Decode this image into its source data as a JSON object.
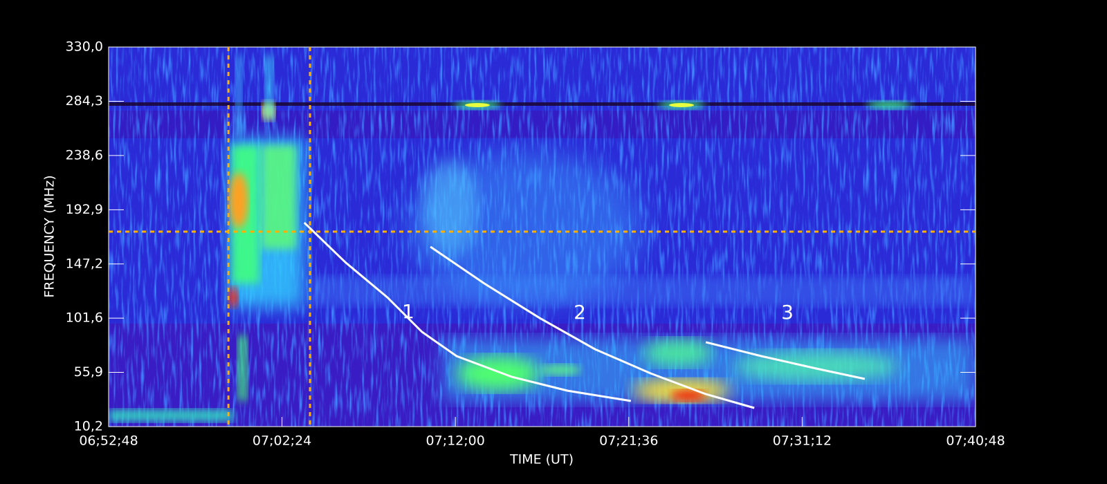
{
  "chart_data": {
    "type": "spectrogram",
    "xlabel": "TIME (UT)",
    "ylabel": "FREQUENCY (MHz)",
    "xlim": [
      "06:52:48",
      "07:40:48"
    ],
    "xticks": [
      {
        "value": "06:52:48",
        "label": "06;52;48"
      },
      {
        "value": "07:02:24",
        "label": "07;02;24"
      },
      {
        "value": "07:12:00",
        "label": "07;12;00"
      },
      {
        "value": "07:21:36",
        "label": "07;21;36"
      },
      {
        "value": "07:31:12",
        "label": "07;31;12"
      },
      {
        "value": "07:40:48",
        "label": "07;40;48"
      }
    ],
    "ylim": [
      10.2,
      330.0
    ],
    "yticks": [
      {
        "value": 10.2,
        "label": "10,2"
      },
      {
        "value": 55.9,
        "label": "55,9"
      },
      {
        "value": 101.6,
        "label": "101,6"
      },
      {
        "value": 147.2,
        "label": "147,2"
      },
      {
        "value": 192.9,
        "label": "192,9"
      },
      {
        "value": 238.6,
        "label": "238,6"
      },
      {
        "value": 284.3,
        "label": "284,3"
      },
      {
        "value": 330.0,
        "label": "330,0"
      }
    ],
    "guides": {
      "color": "#ffb000",
      "x": [
        "06:59:26",
        "07:03:57"
      ],
      "y": [
        174.5
      ]
    },
    "series": [
      {
        "name": "1",
        "color": "#ffffff",
        "x": [
          "07:03:38",
          "07:05:56",
          "07:08:14",
          "07:10:09",
          "07:12:04",
          "07:15:08",
          "07:18:12",
          "07:21:43"
        ],
        "values": [
          182.0,
          148.3,
          119.1,
          90.0,
          69.6,
          52.1,
          40.5,
          31.8
        ]
      },
      {
        "name": "2",
        "color": "#ffffff",
        "x": [
          "07:10:37",
          "07:13:36",
          "07:16:40",
          "07:19:44",
          "07:22:48",
          "07:25:52",
          "07:28:33"
        ],
        "values": [
          161.7,
          130.8,
          101.7,
          75.4,
          55.1,
          37.6,
          25.9
        ]
      },
      {
        "name": "3",
        "color": "#ffffff",
        "x": [
          "07:25:52",
          "07:28:56",
          "07:32:00",
          "07:34:40"
        ],
        "values": [
          81.3,
          69.6,
          59.1,
          50.4
        ]
      }
    ]
  }
}
